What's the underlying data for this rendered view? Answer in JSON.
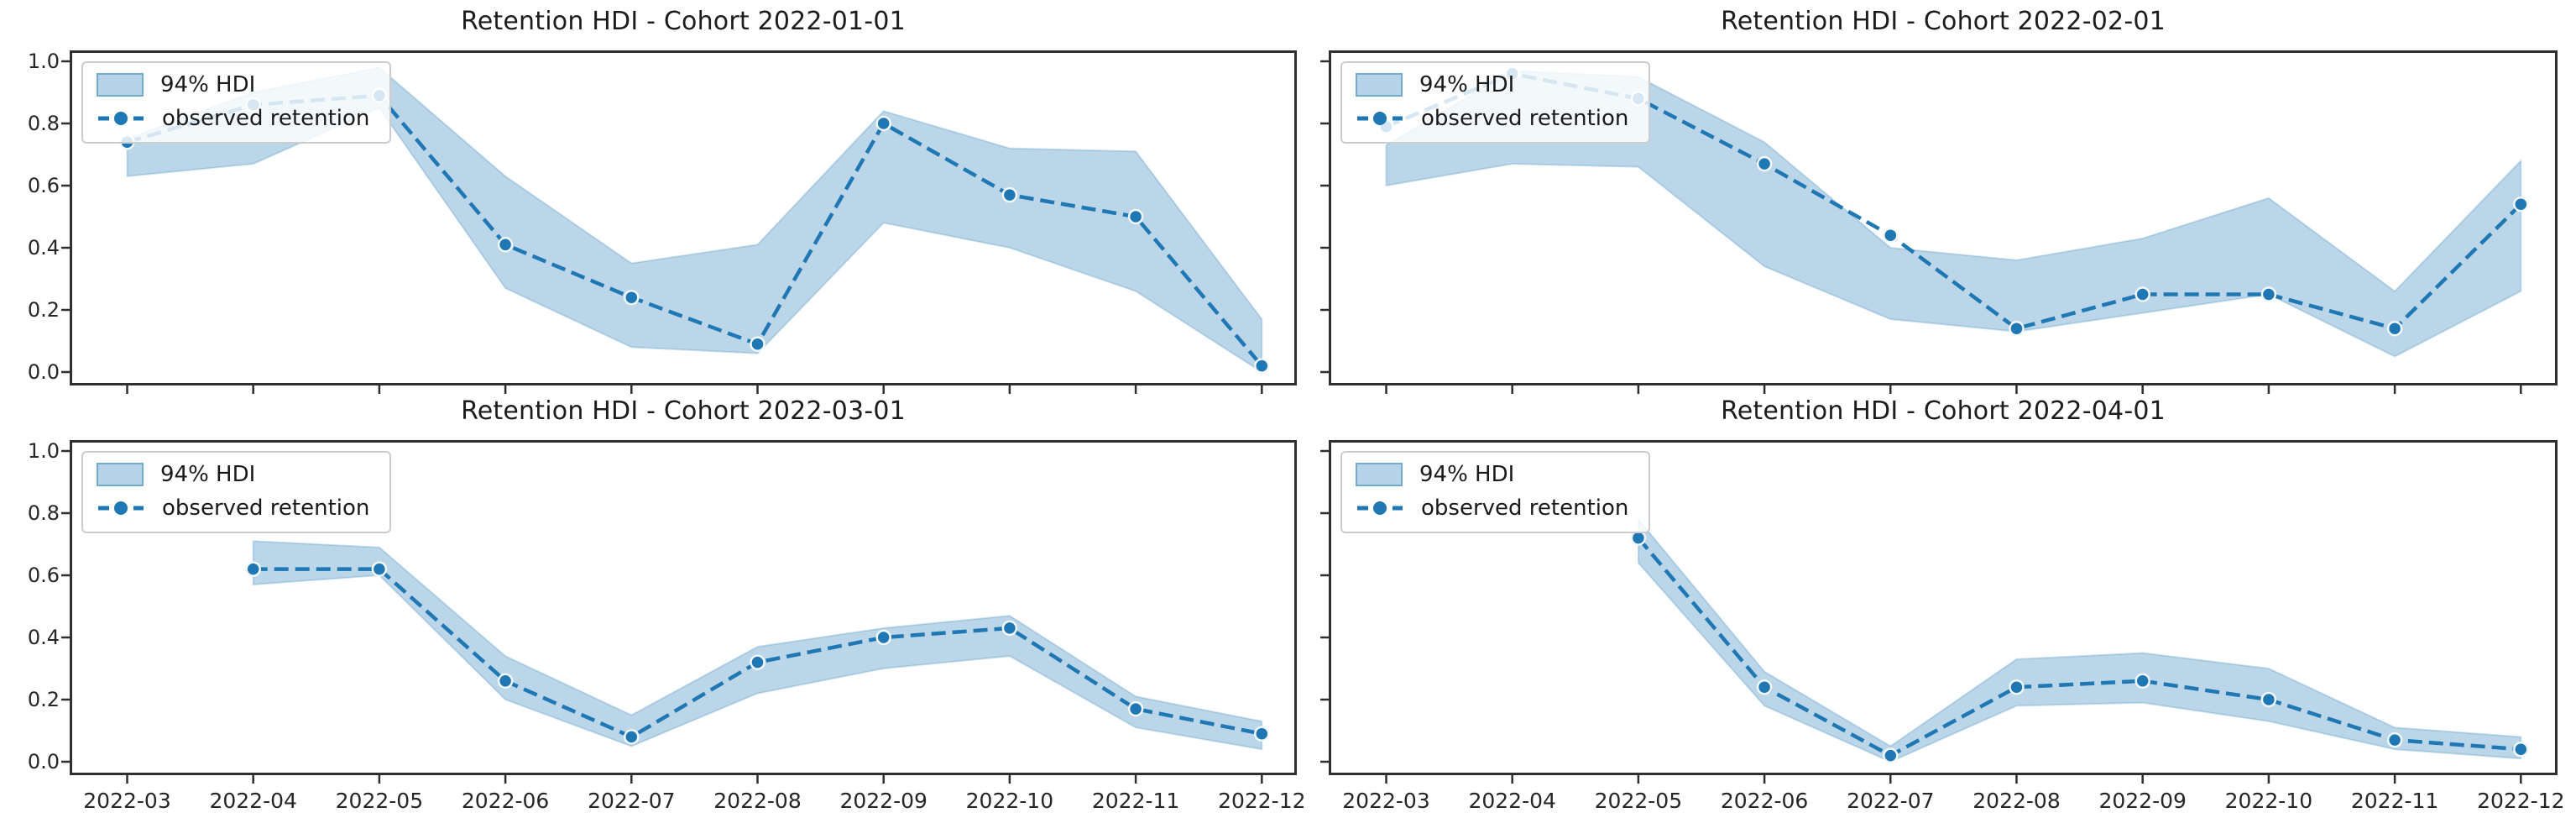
{
  "figure": {
    "background": "#ffffff",
    "rows": 2,
    "cols": 2
  },
  "legend": {
    "band_label": "94% HDI",
    "line_label": "observed retention"
  },
  "axes": {
    "x_tick_labels": [
      "2022-03",
      "2022-04",
      "2022-05",
      "2022-06",
      "2022-07",
      "2022-08",
      "2022-09",
      "2022-10",
      "2022-11",
      "2022-12"
    ],
    "y_tick_labels": [
      "1.0",
      "0.8",
      "0.6",
      "0.4",
      "0.2",
      "0.0"
    ],
    "y_tick_values": [
      1.0,
      0.8,
      0.6,
      0.4,
      0.2,
      0.0
    ],
    "ylim": [
      0.0,
      1.0
    ],
    "grid": "off",
    "legend_position": "upper-left"
  },
  "colors": {
    "line": "#1f77b4",
    "band_fill_hex": "#bcd6e9",
    "band_alpha": 0.3,
    "marker_edge": "#f2f7fb",
    "spine": "#2f2f2f",
    "tick_label": "#262626",
    "title_text": "#1c1c1c",
    "legend_border": "#cccccc"
  },
  "chart_data": [
    {
      "type": "line",
      "title": "Retention HDI - Cohort 2022-01-01",
      "x": [
        "2022-03",
        "2022-04",
        "2022-05",
        "2022-06",
        "2022-07",
        "2022-08",
        "2022-09",
        "2022-10",
        "2022-11",
        "2022-12"
      ],
      "ylim": [
        0.0,
        1.0
      ],
      "show_y_tick_labels": true,
      "show_x_tick_labels": false,
      "series": [
        {
          "name": "observed retention",
          "values": [
            0.74,
            0.86,
            0.89,
            0.41,
            0.24,
            0.09,
            0.8,
            0.57,
            0.5,
            0.02
          ]
        },
        {
          "name": "94% HDI lower",
          "values": [
            0.63,
            0.67,
            0.85,
            0.27,
            0.08,
            0.06,
            0.48,
            0.4,
            0.26,
            0.0
          ]
        },
        {
          "name": "94% HDI upper",
          "values": [
            0.75,
            0.9,
            0.98,
            0.63,
            0.35,
            0.41,
            0.84,
            0.72,
            0.71,
            0.17
          ]
        }
      ]
    },
    {
      "type": "line",
      "title": "Retention HDI - Cohort 2022-02-01",
      "x": [
        "2022-03",
        "2022-04",
        "2022-05",
        "2022-06",
        "2022-07",
        "2022-08",
        "2022-09",
        "2022-10",
        "2022-11",
        "2022-12"
      ],
      "ylim": [
        0.0,
        1.0
      ],
      "show_y_tick_labels": false,
      "show_x_tick_labels": false,
      "series": [
        {
          "name": "observed retention",
          "values": [
            0.79,
            0.96,
            0.88,
            0.67,
            0.44,
            0.14,
            0.25,
            0.25,
            0.14,
            0.54
          ]
        },
        {
          "name": "94% HDI lower",
          "values": [
            0.6,
            0.67,
            0.66,
            0.34,
            0.17,
            0.13,
            0.19,
            0.25,
            0.05,
            0.26
          ]
        },
        {
          "name": "94% HDI upper",
          "values": [
            0.73,
            0.97,
            0.95,
            0.74,
            0.4,
            0.36,
            0.43,
            0.56,
            0.26,
            0.68
          ]
        }
      ]
    },
    {
      "type": "line",
      "title": "Retention HDI - Cohort 2022-03-01",
      "x": [
        "2022-03",
        "2022-04",
        "2022-05",
        "2022-06",
        "2022-07",
        "2022-08",
        "2022-09",
        "2022-10",
        "2022-11",
        "2022-12"
      ],
      "ylim": [
        0.0,
        1.0
      ],
      "show_y_tick_labels": true,
      "show_x_tick_labels": true,
      "series": [
        {
          "name": "observed retention",
          "values": [
            null,
            0.62,
            0.62,
            0.26,
            0.08,
            0.32,
            0.4,
            0.43,
            0.17,
            0.09
          ]
        },
        {
          "name": "94% HDI lower",
          "values": [
            null,
            0.57,
            0.6,
            0.2,
            0.05,
            0.22,
            0.3,
            0.34,
            0.11,
            0.04
          ]
        },
        {
          "name": "94% HDI upper",
          "values": [
            null,
            0.71,
            0.69,
            0.34,
            0.15,
            0.37,
            0.43,
            0.47,
            0.21,
            0.13
          ]
        }
      ]
    },
    {
      "type": "line",
      "title": "Retention HDI - Cohort 2022-04-01",
      "x": [
        "2022-03",
        "2022-04",
        "2022-05",
        "2022-06",
        "2022-07",
        "2022-08",
        "2022-09",
        "2022-10",
        "2022-11",
        "2022-12"
      ],
      "ylim": [
        0.0,
        1.0
      ],
      "show_y_tick_labels": false,
      "show_x_tick_labels": true,
      "series": [
        {
          "name": "observed retention",
          "values": [
            null,
            null,
            0.72,
            0.24,
            0.02,
            0.24,
            0.26,
            0.2,
            0.07,
            0.04
          ]
        },
        {
          "name": "94% HDI lower",
          "values": [
            null,
            null,
            0.64,
            0.18,
            0.0,
            0.18,
            0.19,
            0.13,
            0.04,
            0.01
          ]
        },
        {
          "name": "94% HDI upper",
          "values": [
            null,
            null,
            0.78,
            0.29,
            0.05,
            0.33,
            0.35,
            0.3,
            0.11,
            0.08
          ]
        }
      ]
    }
  ]
}
